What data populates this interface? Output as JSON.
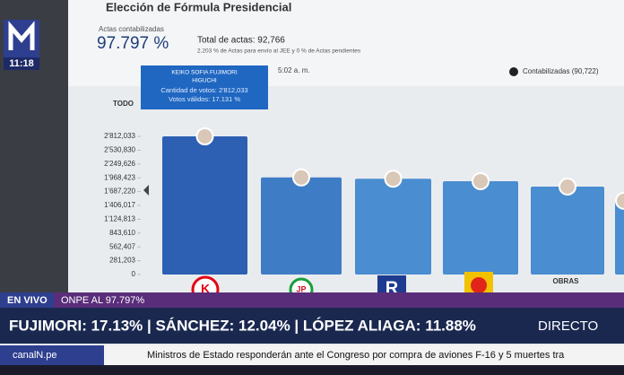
{
  "broadcast": {
    "clock": "11:18",
    "live": "EN VIVO",
    "onpe": "ONPE AL  97.797%",
    "headline": "FUJIMORI: 17.13% | SÁNCHEZ: 12.04% | LÓPEZ ALIAGA: 11.88%",
    "directo": "DIRECTO",
    "site": "canalN.pe",
    "ticker": "Ministros de Estado responderán ante el Congreso por compra de aviones F-16 y 5 muertes tra"
  },
  "screen": {
    "title": "Elección de Fórmula Presidencial",
    "actas_label": "Actas contabilizadas",
    "actas_pct": "97.797 %",
    "total": "Total de actas: 92,766",
    "note": "2.203 % de Actas para envío al JEE y 0 % de Actas pendientes",
    "time": "5:02 a. m.",
    "legend": "Contabilizadas (90,722)",
    "filter": "TODO",
    "tooltip": {
      "name1": "KEIKO SOFIA FUJIMORI",
      "name2": "HIGUCHI",
      "votes": "Cantidad de votos: 2'812,033",
      "valid": "Votos válidos: 17.131 %"
    },
    "logos": {
      "k": "K",
      "jp": "JP",
      "r": "R",
      "obras": "OBRAS"
    }
  },
  "chart_data": {
    "type": "bar",
    "categories": [
      null,
      null,
      null,
      null,
      null,
      null
    ],
    "values": [
      2812033,
      1976000,
      1950000,
      1900000,
      1790000,
      1500000
    ],
    "colors": [
      "#2d5fb3",
      "#3f7cc6",
      "#4a8dd0",
      "#4a8dd0",
      "#4a8dd0",
      "#4a8dd0"
    ],
    "ylim": [
      0,
      2812033
    ],
    "yticks": [
      0,
      {
        "value": 281203,
        "label": "281,203"
      },
      {
        "value": 562407,
        "label": "562,407"
      },
      {
        "value": 843610,
        "label": "843,610"
      },
      {
        "value": 1124813,
        "label": "1'124,813"
      },
      {
        "value": 1406017,
        "label": "1'406,017"
      },
      {
        "value": 1687220,
        "label": "1'687,220"
      },
      {
        "value": 1968423,
        "label": "1'968,423"
      },
      {
        "value": 2249626,
        "label": "2'249,626"
      },
      {
        "value": 2530830,
        "label": "2'530,830"
      },
      {
        "value": 2812033,
        "label": "2'812,033"
      }
    ]
  }
}
